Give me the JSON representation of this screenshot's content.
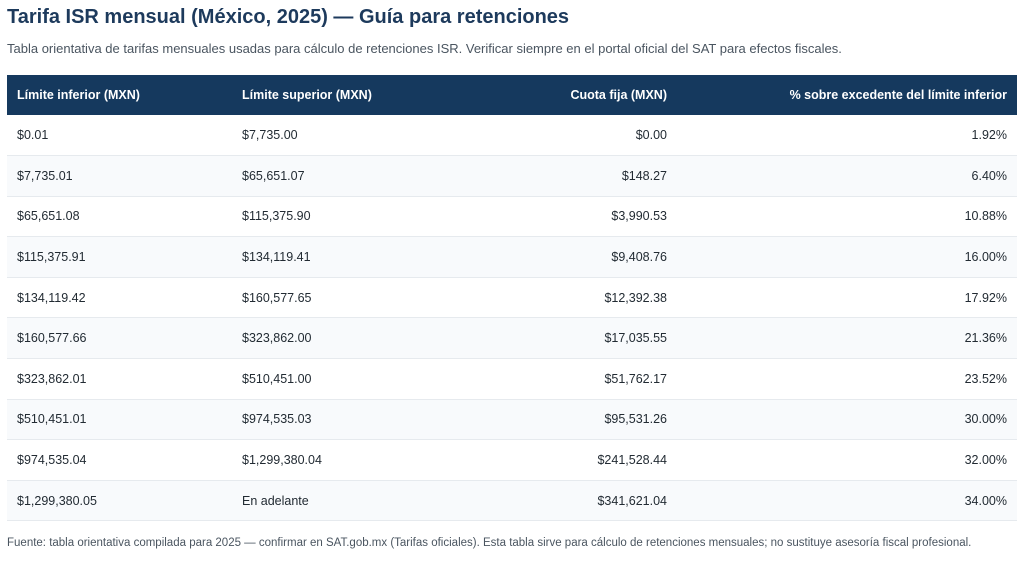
{
  "title": "Tarifa ISR mensual (México, 2025) — Guía para retenciones",
  "subtitle": "Tabla orientativa de tarifas mensuales usadas para cálculo de retenciones ISR. Verificar siempre en el portal oficial del SAT para efectos fiscales.",
  "table": {
    "headers": [
      "Límite inferior (MXN)",
      "Límite superior (MXN)",
      "Cuota fija (MXN)",
      "% sobre excedente del límite inferior"
    ],
    "rows": [
      [
        "$0.01",
        "$7,735.00",
        "$0.00",
        "1.92%"
      ],
      [
        "$7,735.01",
        "$65,651.07",
        "$148.27",
        "6.40%"
      ],
      [
        "$65,651.08",
        "$115,375.90",
        "$3,990.53",
        "10.88%"
      ],
      [
        "$115,375.91",
        "$134,119.41",
        "$9,408.76",
        "16.00%"
      ],
      [
        "$134,119.42",
        "$160,577.65",
        "$12,392.38",
        "17.92%"
      ],
      [
        "$160,577.66",
        "$323,862.00",
        "$17,035.55",
        "21.36%"
      ],
      [
        "$323,862.01",
        "$510,451.00",
        "$51,762.17",
        "23.52%"
      ],
      [
        "$510,451.01",
        "$974,535.03",
        "$95,531.26",
        "30.00%"
      ],
      [
        "$974,535.04",
        "$1,299,380.04",
        "$241,528.44",
        "32.00%"
      ],
      [
        "$1,299,380.05",
        "En adelante",
        "$341,621.04",
        "34.00%"
      ]
    ]
  },
  "footer": "Fuente: tabla orientativa compilada para 2025 — confirmar en SAT.gob.mx (Tarifas oficiales). Esta tabla sirve para cálculo de retenciones mensuales; no sustituye asesoría fiscal profesional."
}
